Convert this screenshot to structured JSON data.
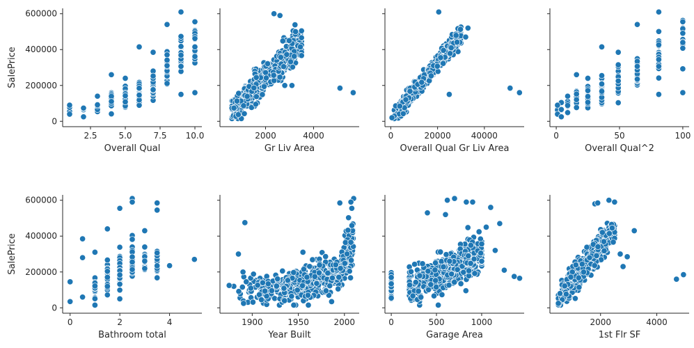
{
  "chart_data": [
    {
      "type": "scatter",
      "xlabel": "Overall Qual",
      "ylabel": "SalePrice",
      "xlim": [
        0.5,
        10.5
      ],
      "xticks": [
        {
          "v": 2.5,
          "label": "2.5"
        },
        {
          "v": 5,
          "label": "5.0"
        },
        {
          "v": 7.5,
          "label": "7.5"
        },
        {
          "v": 10,
          "label": "10.0"
        }
      ],
      "cloud": {
        "kind": "column",
        "xs": [
          1,
          2,
          3,
          4,
          5,
          6,
          7,
          8,
          9,
          10
        ],
        "centers": [
          60000,
          70000,
          90000,
          120000,
          135000,
          160000,
          205000,
          270000,
          365000,
          430000
        ],
        "spreads": [
          25000,
          25000,
          35000,
          60000,
          60000,
          70000,
          85000,
          95000,
          100000,
          110000
        ],
        "n": [
          4,
          6,
          10,
          18,
          30,
          35,
          40,
          35,
          25,
          15
        ]
      },
      "extras": [
        [
          1,
          40000
        ],
        [
          1,
          90000
        ],
        [
          2,
          25000
        ],
        [
          3,
          140000
        ],
        [
          4,
          260000
        ],
        [
          5,
          240000
        ],
        [
          6,
          415000
        ],
        [
          7,
          385000
        ],
        [
          8,
          540000
        ],
        [
          9,
          610000
        ],
        [
          9,
          150000
        ],
        [
          10,
          555000
        ],
        [
          10,
          160000
        ]
      ]
    },
    {
      "type": "scatter",
      "xlabel": "Gr Liv Area",
      "ylabel": "",
      "xlim": [
        100,
        5900
      ],
      "xticks": [
        {
          "v": 2000,
          "label": "2000"
        },
        {
          "v": 4000,
          "label": "4000"
        }
      ],
      "cloud": {
        "kind": "linear",
        "x0": 600,
        "x1": 3500,
        "y0": 50000,
        "y1": 440000,
        "noise": 70000,
        "n": 420
      },
      "extras": [
        [
          5100,
          185000
        ],
        [
          5650,
          160000
        ],
        [
          2350,
          600000
        ],
        [
          2600,
          590000
        ],
        [
          3450,
          415000
        ],
        [
          3250,
          500000
        ],
        [
          2800,
          200000
        ],
        [
          3100,
          200000
        ]
      ]
    },
    {
      "type": "scatter",
      "xlabel": "Overall Qual Gr Liv Area",
      "ylabel": "",
      "xlim": [
        -2500,
        57000
      ],
      "xticks": [
        {
          "v": 0,
          "label": "0"
        },
        {
          "v": 20000,
          "label": "20000"
        },
        {
          "v": 40000,
          "label": "40000"
        }
      ],
      "cloud": {
        "kind": "linear",
        "x0": 1500,
        "x1": 30000,
        "y0": 35000,
        "y1": 480000,
        "noise": 40000,
        "n": 420
      },
      "extras": [
        [
          51000,
          185000
        ],
        [
          55000,
          160000
        ],
        [
          20500,
          610000
        ],
        [
          25000,
          150000
        ],
        [
          32000,
          470000
        ],
        [
          33000,
          520000
        ],
        [
          500,
          20000
        ]
      ]
    },
    {
      "type": "scatter",
      "xlabel": "Overall Qual^2",
      "ylabel": "",
      "xlim": [
        -5,
        105
      ],
      "xticks": [
        {
          "v": 0,
          "label": "0"
        },
        {
          "v": 50,
          "label": "50"
        },
        {
          "v": 100,
          "label": "100"
        }
      ],
      "cloud": {
        "kind": "column",
        "xs": [
          1,
          4,
          9,
          16,
          25,
          36,
          49,
          64,
          81,
          100
        ],
        "centers": [
          60000,
          70000,
          90000,
          120000,
          135000,
          160000,
          205000,
          270000,
          365000,
          430000
        ],
        "spreads": [
          25000,
          25000,
          35000,
          60000,
          60000,
          70000,
          85000,
          95000,
          100000,
          110000
        ],
        "n": [
          4,
          6,
          10,
          18,
          30,
          35,
          40,
          35,
          25,
          15
        ]
      },
      "extras": [
        [
          1,
          40000
        ],
        [
          1,
          90000
        ],
        [
          4,
          25000
        ],
        [
          9,
          140000
        ],
        [
          16,
          260000
        ],
        [
          25,
          240000
        ],
        [
          36,
          415000
        ],
        [
          49,
          385000
        ],
        [
          64,
          540000
        ],
        [
          81,
          610000
        ],
        [
          81,
          150000
        ],
        [
          100,
          555000
        ],
        [
          100,
          160000
        ]
      ]
    },
    {
      "type": "scatter",
      "xlabel": "Bathroom total",
      "ylabel": "SalePrice",
      "xlim": [
        -0.3,
        5.3
      ],
      "xticks": [
        {
          "v": 0,
          "label": "0"
        },
        {
          "v": 2,
          "label": "2"
        },
        {
          "v": 4,
          "label": "4"
        }
      ],
      "cloud": {
        "kind": "column",
        "xs": [
          1,
          1.5,
          2,
          2.5,
          3,
          3.5
        ],
        "centers": [
          130000,
          175000,
          200000,
          240000,
          260000,
          280000
        ],
        "spreads": [
          60000,
          80000,
          95000,
          110000,
          70000,
          100000
        ],
        "n": [
          20,
          30,
          50,
          45,
          25,
          15
        ]
      },
      "extras": [
        [
          0,
          35000
        ],
        [
          0,
          145000
        ],
        [
          0.5,
          385000
        ],
        [
          0.5,
          280000
        ],
        [
          0.5,
          60000
        ],
        [
          1,
          310000
        ],
        [
          1,
          15000
        ],
        [
          1.5,
          440000
        ],
        [
          2,
          555000
        ],
        [
          2,
          50000
        ],
        [
          2.5,
          610000
        ],
        [
          2.5,
          590000
        ],
        [
          3,
          430000
        ],
        [
          3.5,
          585000
        ],
        [
          3.5,
          545000
        ],
        [
          4,
          235000
        ],
        [
          5,
          270000
        ]
      ]
    },
    {
      "type": "scatter",
      "xlabel": "Year Built",
      "ylabel": "",
      "xlim": [
        1865,
        2016
      ],
      "xticks": [
        {
          "v": 1900,
          "label": "1900"
        },
        {
          "v": 1950,
          "label": "1950"
        },
        {
          "v": 2000,
          "label": "2000"
        }
      ],
      "cloud": {
        "kind": "year",
        "x0": 1880,
        "x1": 2010,
        "n": 520
      },
      "extras": [
        [
          1892,
          475000
        ],
        [
          1880,
          120000
        ],
        [
          1875,
          125000
        ],
        [
          1885,
          300000
        ],
        [
          1890,
          200000
        ],
        [
          1935,
          40000
        ],
        [
          1945,
          15000
        ],
        [
          1910,
          45000
        ],
        [
          2010,
          610000
        ],
        [
          2007,
          590000
        ],
        [
          1995,
          585000
        ],
        [
          2008,
          555000
        ],
        [
          1955,
          310000
        ]
      ]
    },
    {
      "type": "scatter",
      "xlabel": "Garage Area",
      "ylabel": "",
      "xlim": [
        -70,
        1470
      ],
      "xticks": [
        {
          "v": 0,
          "label": "0"
        },
        {
          "v": 500,
          "label": "500"
        },
        {
          "v": 1000,
          "label": "1000"
        }
      ],
      "cloud": {
        "kind": "linear",
        "x0": 200,
        "x1": 1000,
        "y0": 110000,
        "y1": 300000,
        "noise": 80000,
        "n": 460
      },
      "zeros": {
        "x": 0,
        "ymin": 30000,
        "ymax": 200000,
        "n": 25
      },
      "extras": [
        [
          700,
          610000
        ],
        [
          620,
          600000
        ],
        [
          900,
          590000
        ],
        [
          830,
          590000
        ],
        [
          1050,
          450000
        ],
        [
          1200,
          470000
        ],
        [
          1100,
          560000
        ],
        [
          1360,
          175000
        ],
        [
          1420,
          165000
        ],
        [
          520,
          15000
        ],
        [
          1000,
          260000
        ],
        [
          1150,
          320000
        ],
        [
          1250,
          210000
        ],
        [
          400,
          530000
        ],
        [
          600,
          520000
        ]
      ]
    },
    {
      "type": "scatter",
      "xlabel": "1st Flr SF",
      "ylabel": "",
      "xlim": [
        200,
        5150
      ],
      "xticks": [
        {
          "v": 2000,
          "label": "2000"
        },
        {
          "v": 4000,
          "label": "4000"
        }
      ],
      "cloud": {
        "kind": "linear",
        "x0": 500,
        "x1": 2500,
        "y0": 50000,
        "y1": 440000,
        "noise": 65000,
        "n": 420
      },
      "extras": [
        [
          4700,
          160000
        ],
        [
          4950,
          185000
        ],
        [
          3200,
          430000
        ],
        [
          2300,
          600000
        ],
        [
          2500,
          590000
        ],
        [
          1800,
          580000
        ],
        [
          1900,
          585000
        ],
        [
          2700,
          300000
        ],
        [
          2950,
          285000
        ],
        [
          2800,
          230000
        ]
      ]
    }
  ],
  "yticks": [
    {
      "v": 0,
      "label": "0"
    },
    {
      "v": 200000,
      "label": "200000"
    },
    {
      "v": 400000,
      "label": "400000"
    },
    {
      "v": 600000,
      "label": "600000"
    }
  ],
  "ylim": [
    -30000,
    630000
  ],
  "colors": {
    "marker": "#1f77b4",
    "marker_edge": "#ffffff",
    "axis": "#262626"
  }
}
